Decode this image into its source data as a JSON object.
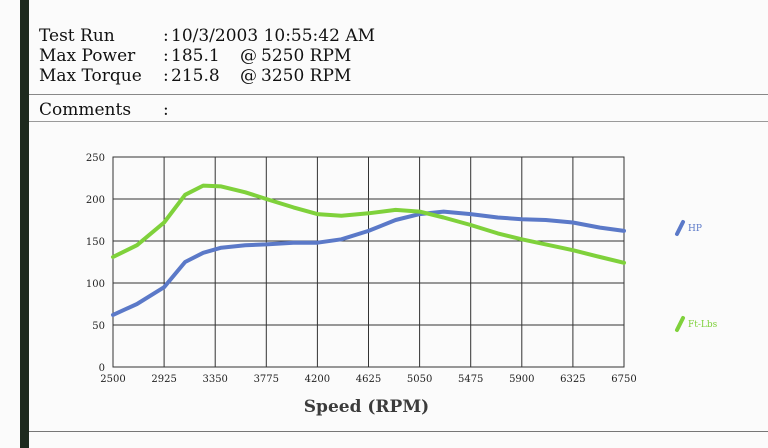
{
  "report": {
    "test_run_label": "Test Run",
    "test_run_value": "10/3/2003 10:55:42 AM",
    "max_power_label": "Max Power",
    "max_power_value": "185.1",
    "max_power_rpm": "5250  RPM",
    "max_torque_label": "Max Torque",
    "max_torque_value": "215.8",
    "max_torque_rpm": "3250  RPM",
    "comments_label": "Comments",
    "separator": ":",
    "at_symbol": "@",
    "comments_value": ""
  },
  "chart_data": {
    "type": "line",
    "xlabel": "Speed (RPM)",
    "ylabel": "",
    "xlim": [
      2500,
      6750
    ],
    "ylim": [
      0,
      250
    ],
    "x_ticks": [
      2500,
      2925,
      3350,
      3775,
      4200,
      4625,
      5050,
      5475,
      5900,
      6325,
      6750
    ],
    "y_ticks": [
      0,
      50,
      100,
      150,
      200,
      250
    ],
    "grid": true,
    "legend_placement": "right",
    "series": [
      {
        "name": "HP",
        "color": "#5b79c8",
        "points": [
          [
            2500,
            62
          ],
          [
            2700,
            75
          ],
          [
            2925,
            95
          ],
          [
            3100,
            125
          ],
          [
            3250,
            136
          ],
          [
            3400,
            142
          ],
          [
            3600,
            145
          ],
          [
            3775,
            146
          ],
          [
            4000,
            148
          ],
          [
            4200,
            148
          ],
          [
            4400,
            152
          ],
          [
            4625,
            162
          ],
          [
            4850,
            175
          ],
          [
            5050,
            182
          ],
          [
            5250,
            185
          ],
          [
            5475,
            182
          ],
          [
            5700,
            178
          ],
          [
            5900,
            176
          ],
          [
            6100,
            175
          ],
          [
            6325,
            172
          ],
          [
            6550,
            166
          ],
          [
            6750,
            162
          ]
        ]
      },
      {
        "name": "Ft-Lbs",
        "color": "#7fd13b",
        "points": [
          [
            2500,
            131
          ],
          [
            2700,
            145
          ],
          [
            2925,
            172
          ],
          [
            3100,
            205
          ],
          [
            3250,
            216
          ],
          [
            3400,
            215
          ],
          [
            3600,
            208
          ],
          [
            3775,
            200
          ],
          [
            4000,
            190
          ],
          [
            4200,
            182
          ],
          [
            4400,
            180
          ],
          [
            4625,
            183
          ],
          [
            4850,
            187
          ],
          [
            5050,
            185
          ],
          [
            5250,
            178
          ],
          [
            5475,
            169
          ],
          [
            5700,
            159
          ],
          [
            5900,
            152
          ],
          [
            6100,
            146
          ],
          [
            6325,
            139
          ],
          [
            6550,
            131
          ],
          [
            6750,
            124
          ]
        ]
      }
    ]
  }
}
